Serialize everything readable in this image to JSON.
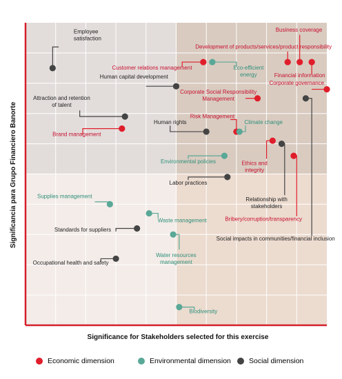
{
  "chart_data": {
    "type": "scatter",
    "xlabel": "Significance for Stakeholders selected for this exercise",
    "ylabel": "Significancia para Grupo Financiero Banorte",
    "xlim": [
      0,
      100
    ],
    "ylim": [
      0,
      100
    ],
    "grid": true,
    "legend_position": "bottom",
    "series": [
      {
        "name": "Economic dimension",
        "key": "economic",
        "color": "#e01e2b"
      },
      {
        "name": "Environmental dimension",
        "key": "environmental",
        "color": "#5aa897"
      },
      {
        "name": "Social dimension",
        "key": "social",
        "color": "#444444"
      }
    ],
    "points": [
      {
        "label": "Business coverage",
        "dim": "economic",
        "x": 91,
        "y": 87,
        "lx": 83,
        "ly": 97,
        "path": [
          [
            91,
            87
          ],
          [
            91,
            96
          ]
        ],
        "anchor": "start"
      },
      {
        "label": "Development of products/services/product responsibility",
        "dim": "economic",
        "x": 87,
        "y": 87,
        "lx": 79,
        "ly": 91.5,
        "path": [
          [
            87,
            87
          ],
          [
            87,
            90.5
          ]
        ],
        "anchor": "middle"
      },
      {
        "label": "Financial information",
        "dim": "economic",
        "x": 95,
        "y": 87,
        "lx": 91,
        "ly": 82,
        "path": [
          [
            95,
            87
          ],
          [
            95,
            83
          ]
        ],
        "anchor": "middle"
      },
      {
        "label": "Customer relations management",
        "dim": "economic",
        "x": 59,
        "y": 87,
        "lx": 42,
        "ly": 84.5,
        "path": [
          [
            59,
            87
          ],
          [
            52,
            87
          ],
          [
            52,
            85.5
          ]
        ],
        "anchor": "middle"
      },
      {
        "label": "Eco-efficient energy",
        "dim": "environmental",
        "x": 62,
        "y": 87,
        "lx": 74,
        "ly": 84.5,
        "lines": [
          "Eco-efficient",
          "energy"
        ],
        "path": [
          [
            62,
            87
          ],
          [
            70,
            87
          ],
          [
            70,
            85.5
          ]
        ],
        "anchor": "middle"
      },
      {
        "label": "Employee satisfaction",
        "dim": "social",
        "x": 9,
        "y": 85,
        "lx": 16,
        "ly": 96.5,
        "lines": [
          "Employee",
          "satisfaction"
        ],
        "path": [
          [
            9,
            85
          ],
          [
            9,
            92
          ],
          [
            11,
            92
          ]
        ],
        "anchor": "start"
      },
      {
        "label": "Human capital development",
        "dim": "social",
        "x": 50,
        "y": 79,
        "lx": 36,
        "ly": 81.5,
        "path": [
          [
            50,
            79
          ],
          [
            40,
            79
          ]
        ],
        "anchor": "middle"
      },
      {
        "label": "Corporate governance",
        "dim": "economic",
        "x": 100,
        "y": 78,
        "lx": 90,
        "ly": 79.5,
        "path": [
          [
            100,
            78
          ],
          [
            95,
            78
          ]
        ],
        "anchor": "middle"
      },
      {
        "label": "Corporate Social Responsibility Management",
        "dim": "economic",
        "x": 77,
        "y": 75,
        "lx": 64,
        "ly": 76.5,
        "lines": [
          "Corporate Social Responsibility",
          "Management"
        ],
        "path": [
          [
            77,
            75
          ],
          [
            73,
            75
          ]
        ],
        "anchor": "middle"
      },
      {
        "label": "Social impacts in communities/financial inclusion",
        "dim": "social",
        "x": 93,
        "y": 75,
        "lx": 83,
        "ly": 28,
        "path": [
          [
            93,
            75
          ],
          [
            95,
            75
          ],
          [
            95,
            29.5
          ]
        ],
        "anchor": "middle"
      },
      {
        "label": "Attraction and retention of talent",
        "dim": "social",
        "x": 33,
        "y": 69,
        "lx": 12,
        "ly": 74.5,
        "lines": [
          "Attraction and retention",
          "of talent"
        ],
        "path": [
          [
            33,
            69
          ],
          [
            18,
            69
          ],
          [
            18,
            71
          ]
        ],
        "anchor": "middle"
      },
      {
        "label": "Risk Management",
        "dim": "economic",
        "x": 70,
        "y": 64,
        "lx": 62,
        "ly": 68.5,
        "path": [
          [
            70,
            64
          ],
          [
            70,
            68
          ],
          [
            68,
            68
          ]
        ],
        "anchor": "middle"
      },
      {
        "label": "Climate change",
        "dim": "environmental",
        "x": 71,
        "y": 64,
        "lx": 79,
        "ly": 66.5,
        "path": [
          [
            71,
            64
          ],
          [
            73,
            64
          ],
          [
            73,
            66
          ]
        ],
        "anchor": "middle"
      },
      {
        "label": "Human rights",
        "dim": "social",
        "x": 60,
        "y": 64,
        "lx": 48,
        "ly": 66.5,
        "path": [
          [
            60,
            64
          ],
          [
            48,
            64
          ],
          [
            48,
            66
          ]
        ],
        "anchor": "middle"
      },
      {
        "label": "Brand management",
        "dim": "economic",
        "x": 32,
        "y": 65,
        "lx": 17,
        "ly": 62.5,
        "path": [
          [
            32,
            65
          ],
          [
            19,
            65
          ],
          [
            19,
            63
          ]
        ],
        "anchor": "middle"
      },
      {
        "label": "Ethics and integrity",
        "dim": "economic",
        "x": 82,
        "y": 61,
        "lx": 76,
        "ly": 53,
        "lines": [
          "Ethics and",
          "integrity"
        ],
        "path": [
          [
            82,
            61
          ],
          [
            80,
            61
          ],
          [
            80,
            55
          ]
        ],
        "anchor": "middle"
      },
      {
        "label": "Relationship with stakeholders",
        "dim": "social",
        "x": 85,
        "y": 60,
        "lx": 80,
        "ly": 41,
        "lines": [
          "Relationship with",
          "stakeholders"
        ],
        "path": [
          [
            85,
            60
          ],
          [
            86,
            60
          ],
          [
            86,
            43
          ]
        ],
        "anchor": "middle"
      },
      {
        "label": "Bribery/corruption/transparency",
        "dim": "economic",
        "x": 89,
        "y": 56,
        "lx": 79,
        "ly": 34.5,
        "path": [
          [
            89,
            56
          ],
          [
            90,
            56
          ],
          [
            90,
            36
          ]
        ],
        "anchor": "middle"
      },
      {
        "label": "Environmental policies",
        "dim": "environmental",
        "x": 66,
        "y": 56,
        "lx": 54,
        "ly": 53.5,
        "path": [
          [
            66,
            56
          ],
          [
            54,
            56
          ],
          [
            54,
            55
          ]
        ],
        "anchor": "middle"
      },
      {
        "label": "Labor practices",
        "dim": "social",
        "x": 67,
        "y": 49,
        "lx": 54,
        "ly": 46.5,
        "path": [
          [
            67,
            49
          ],
          [
            54,
            49
          ],
          [
            54,
            48
          ]
        ],
        "anchor": "middle"
      },
      {
        "label": "Supplies management",
        "dim": "environmental",
        "x": 28,
        "y": 40,
        "lx": 13,
        "ly": 42,
        "path": [
          [
            28,
            40
          ],
          [
            28,
            40.8
          ],
          [
            23,
            40.8
          ]
        ],
        "anchor": "middle"
      },
      {
        "label": "Standards for suppliers",
        "dim": "social",
        "x": 37,
        "y": 32,
        "lx": 19,
        "ly": 31,
        "path": [
          [
            37,
            32
          ],
          [
            30,
            32
          ],
          [
            30,
            31
          ]
        ],
        "anchor": "middle"
      },
      {
        "label": "Waste management",
        "dim": "environmental",
        "x": 41,
        "y": 37,
        "lx": 52,
        "ly": 34,
        "path": [
          [
            41,
            37
          ],
          [
            44,
            37
          ],
          [
            44,
            35.5
          ]
        ],
        "anchor": "middle"
      },
      {
        "label": "Water resources management",
        "dim": "environmental",
        "x": 49,
        "y": 30,
        "lx": 50,
        "ly": 22.5,
        "lines": [
          "Water resources",
          "management"
        ],
        "path": [
          [
            49,
            30
          ],
          [
            51,
            30
          ],
          [
            51,
            25
          ]
        ],
        "anchor": "middle"
      },
      {
        "label": "Occupational health and safety",
        "dim": "social",
        "x": 30,
        "y": 22,
        "lx": 15,
        "ly": 20,
        "path": [
          [
            30,
            22
          ],
          [
            25,
            22
          ],
          [
            25,
            21
          ]
        ],
        "anchor": "middle"
      },
      {
        "label": "Biodiversity",
        "dim": "environmental",
        "x": 51,
        "y": 6,
        "lx": 59,
        "ly": 4,
        "path": [
          [
            51,
            6
          ],
          [
            56,
            6
          ],
          [
            56,
            5
          ]
        ],
        "anchor": "middle"
      }
    ]
  }
}
